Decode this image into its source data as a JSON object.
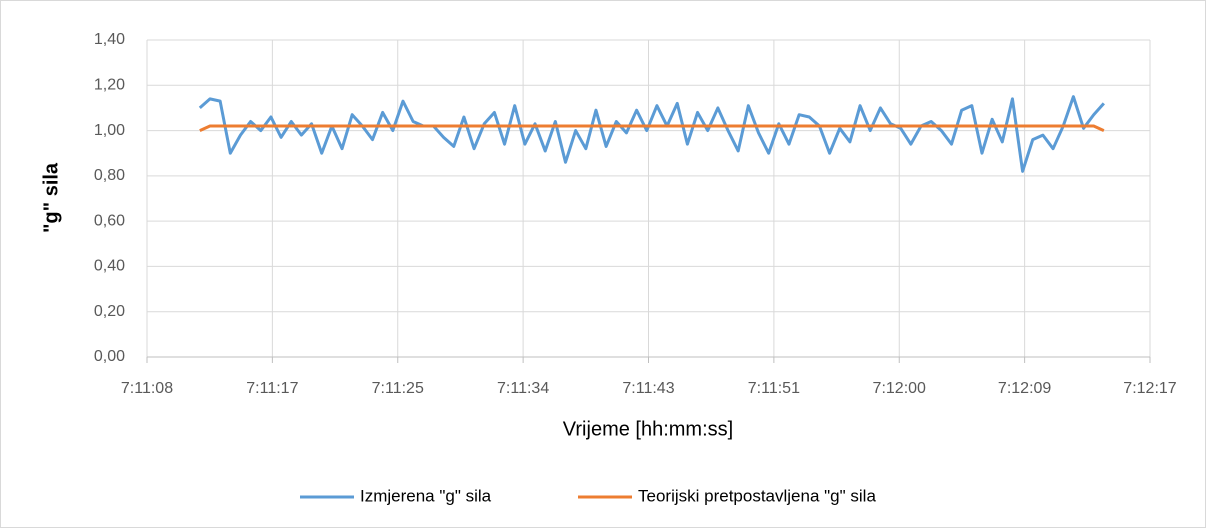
{
  "chart_data": {
    "type": "line",
    "xlabel": "Vrijeme [hh:mm:ss]",
    "ylabel": "\"g\" sila",
    "x": [
      25871.8,
      25872.5,
      25873.2,
      25873.9,
      25874.6,
      25875.3,
      25876.0,
      25876.7,
      25877.4,
      25878.1,
      25878.8,
      25879.5,
      25880.2,
      25880.9,
      25881.6,
      25882.3,
      25883.0,
      25883.7,
      25884.4,
      25885.1,
      25885.8,
      25886.5,
      25887.2,
      25887.9,
      25888.6,
      25889.3,
      25890.0,
      25890.7,
      25891.4,
      25892.1,
      25892.8,
      25893.5,
      25894.2,
      25894.9,
      25895.6,
      25896.3,
      25897.0,
      25897.7,
      25898.4,
      25899.1,
      25899.8,
      25900.5,
      25901.2,
      25901.9,
      25902.6,
      25903.3,
      25904.0,
      25904.7,
      25905.4,
      25906.1,
      25906.8,
      25907.5,
      25908.2,
      25908.9,
      25909.6,
      25910.3,
      25911.0,
      25911.7,
      25912.4,
      25913.1,
      25913.8,
      25914.5,
      25915.2,
      25915.9,
      25916.6,
      25917.3,
      25918.0,
      25918.7,
      25919.4,
      25920.1,
      25920.8,
      25921.5,
      25922.2,
      25922.9,
      25923.6,
      25924.3,
      25925.0,
      25925.7,
      25926.4,
      25927.1,
      25927.8,
      25928.5,
      25929.2,
      25929.9,
      25930.6,
      25931.3,
      25932.0,
      25932.7,
      25933.4,
      25934.1
    ],
    "series": [
      {
        "name": "Izmjerena \"g\" sila",
        "color": "#5b9bd5",
        "values": [
          1.1,
          1.14,
          1.13,
          0.9,
          0.98,
          1.04,
          1.0,
          1.06,
          0.97,
          1.04,
          0.98,
          1.03,
          0.9,
          1.02,
          0.92,
          1.07,
          1.02,
          0.96,
          1.08,
          1.0,
          1.13,
          1.04,
          1.02,
          1.02,
          0.97,
          0.93,
          1.06,
          0.92,
          1.03,
          1.08,
          0.94,
          1.11,
          0.94,
          1.03,
          0.91,
          1.04,
          0.86,
          1.0,
          0.92,
          1.09,
          0.93,
          1.04,
          0.99,
          1.09,
          1.0,
          1.11,
          1.02,
          1.12,
          0.94,
          1.08,
          1.0,
          1.1,
          1.0,
          0.91,
          1.11,
          0.99,
          0.9,
          1.03,
          0.94,
          1.07,
          1.06,
          1.02,
          0.9,
          1.01,
          0.95,
          1.11,
          1.0,
          1.1,
          1.03,
          1.01,
          0.94,
          1.02,
          1.04,
          1.0,
          0.94,
          1.09,
          1.11,
          0.9,
          1.05,
          0.95,
          1.14,
          0.82,
          0.96,
          0.98,
          0.92,
          1.02,
          1.15,
          1.01,
          1.07,
          1.12
        ]
      },
      {
        "name": "Teorijski pretpostavljena \"g\" sila",
        "color": "#ed7d31",
        "values": [
          1.0,
          1.02,
          1.02,
          1.02,
          1.02,
          1.02,
          1.02,
          1.02,
          1.02,
          1.02,
          1.02,
          1.02,
          1.02,
          1.02,
          1.02,
          1.02,
          1.02,
          1.02,
          1.02,
          1.02,
          1.02,
          1.02,
          1.02,
          1.02,
          1.02,
          1.02,
          1.02,
          1.02,
          1.02,
          1.02,
          1.02,
          1.02,
          1.02,
          1.02,
          1.02,
          1.02,
          1.02,
          1.02,
          1.02,
          1.02,
          1.02,
          1.02,
          1.02,
          1.02,
          1.02,
          1.02,
          1.02,
          1.02,
          1.02,
          1.02,
          1.02,
          1.02,
          1.02,
          1.02,
          1.02,
          1.02,
          1.02,
          1.02,
          1.02,
          1.02,
          1.02,
          1.02,
          1.02,
          1.02,
          1.02,
          1.02,
          1.02,
          1.02,
          1.02,
          1.02,
          1.02,
          1.02,
          1.02,
          1.02,
          1.02,
          1.02,
          1.02,
          1.02,
          1.02,
          1.02,
          1.02,
          1.02,
          1.02,
          1.02,
          1.02,
          1.02,
          1.02,
          1.02,
          1.02,
          1.0
        ]
      }
    ],
    "xlim": [
      25868.16,
      25937.28
    ],
    "xticks": [
      {
        "value": 25868.16,
        "label": "7:11:08"
      },
      {
        "value": 25876.8,
        "label": "7:11:17"
      },
      {
        "value": 25885.44,
        "label": "7:11:25"
      },
      {
        "value": 25894.08,
        "label": "7:11:34"
      },
      {
        "value": 25902.72,
        "label": "7:11:43"
      },
      {
        "value": 25911.36,
        "label": "7:11:51"
      },
      {
        "value": 25920.0,
        "label": "7:12:00"
      },
      {
        "value": 25928.64,
        "label": "7:12:09"
      },
      {
        "value": 25937.28,
        "label": "7:12:17"
      }
    ],
    "ylim": [
      0,
      1.4
    ],
    "yticks": [
      {
        "value": 0,
        "label": "0,00"
      },
      {
        "value": 0.2,
        "label": "0,20"
      },
      {
        "value": 0.4,
        "label": "0,40"
      },
      {
        "value": 0.6,
        "label": "0,60"
      },
      {
        "value": 0.8,
        "label": "0,80"
      },
      {
        "value": 1.0,
        "label": "1,00"
      },
      {
        "value": 1.2,
        "label": "1,20"
      },
      {
        "value": 1.4,
        "label": "1,40"
      }
    ],
    "grid": true,
    "legend": "bottom"
  }
}
